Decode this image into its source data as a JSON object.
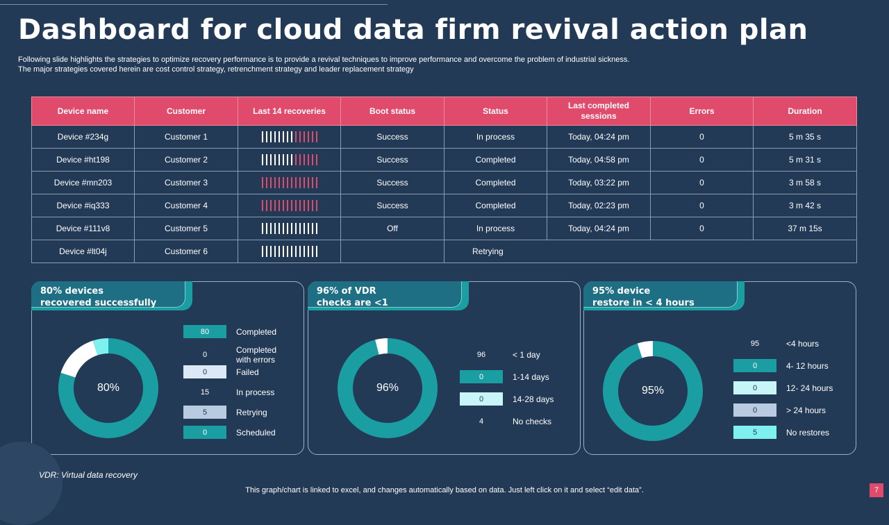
{
  "title": "Dashboard for cloud data firm revival action plan",
  "subtitle_lines": [
    "Following slide highlights the strategies to optimize recovery performance is to provide a revival techniques to improve performance and overcome the problem of industrial sickness.",
    "The major strategies covered herein are cost control strategy, retrenchment strategy and leader replacement strategy"
  ],
  "colors": {
    "accent": "#e04a6b",
    "teal": "#1a9ea1",
    "background": "#233a56"
  },
  "table": {
    "headers": [
      "Device name",
      "Customer",
      "Last 14 recoveries",
      "Boot status",
      "Status",
      "Last completed sessions",
      "Errors",
      "Duration"
    ],
    "rows": [
      {
        "device": "Device #234g",
        "customer": "Customer 1",
        "white_bars": 8,
        "red_bars": 6,
        "boot": "Success",
        "status": "In process",
        "last": "Today, 04:24 pm",
        "errors": "0",
        "duration": "5 m 35 s"
      },
      {
        "device": "Device #ht198",
        "customer": "Customer 2",
        "white_bars": 8,
        "red_bars": 6,
        "boot": "Success",
        "status": "Completed",
        "last": "Today, 04:58 pm",
        "errors": "0",
        "duration": "5 m 31 s"
      },
      {
        "device": "Device #mn203",
        "customer": "Customer 3",
        "white_bars": 0,
        "red_bars": 14,
        "boot": "Success",
        "status": "Completed",
        "last": "Today, 03:22 pm",
        "errors": "0",
        "duration": "3 m 58 s"
      },
      {
        "device": "Device #iq333",
        "customer": "Customer 4",
        "white_bars": 0,
        "red_bars": 14,
        "boot": "Success",
        "status": "Completed",
        "last": "Today, 02:23 pm",
        "errors": "0",
        "duration": "3 m 42 s"
      },
      {
        "device": "Device #111v8",
        "customer": "Customer 5",
        "white_bars": 14,
        "red_bars": 0,
        "boot": "Off",
        "status": "In process",
        "last": "Today, 04:24 pm",
        "errors": "0",
        "duration": "37 m 15s"
      },
      {
        "device": "Device #lt04j",
        "customer": "Customer 6",
        "white_bars": 14,
        "red_bars": 0,
        "retry_status": "Retrying"
      }
    ]
  },
  "panels": [
    {
      "heading_lines": [
        "80% devices",
        "recovered successfully"
      ],
      "center": "80%",
      "segments": [
        {
          "value": 80,
          "color": "#1a9ea1"
        },
        {
          "value": 15,
          "color": "#ffffff"
        },
        {
          "value": 5,
          "color": "#7ff0f0"
        }
      ],
      "legend": [
        {
          "value": "80",
          "label": "Completed",
          "color": "#1a9ea1",
          "text_color": "#ffffff"
        },
        {
          "value": "0",
          "label": "Completed\nwith errors",
          "color": "",
          "text_color": "#ffffff"
        },
        {
          "value": "0",
          "label": "Failed",
          "color": "#dce8f6",
          "text_color": "#233a56"
        },
        {
          "value": "15",
          "label": "In process",
          "color": "",
          "text_color": "#ffffff"
        },
        {
          "value": "5",
          "label": "Retrying",
          "color": "#b9cbe0",
          "text_color": "#233a56"
        },
        {
          "value": "0",
          "label": "Scheduled",
          "color": "#1a9ea1",
          "text_color": "#ffffff"
        }
      ]
    },
    {
      "heading_lines": [
        "96% of VDR",
        "checks are <1"
      ],
      "center": "96%",
      "segments": [
        {
          "value": 96,
          "color": "#1a9ea1"
        },
        {
          "value": 4,
          "color": "#ffffff"
        }
      ],
      "legend": [
        {
          "value": "96",
          "label": "< 1 day",
          "color": "",
          "text_color": "#ffffff"
        },
        {
          "value": "0",
          "label": "1-14 days",
          "color": "#1a9ea1",
          "text_color": "#ffffff"
        },
        {
          "value": "0",
          "label": "14-28 days",
          "color": "#c8f6f8",
          "text_color": "#233a56"
        },
        {
          "value": "4",
          "label": "No checks",
          "color": "",
          "text_color": "#ffffff"
        }
      ]
    },
    {
      "heading_lines": [
        "95% device",
        "restore in  < 4 hours"
      ],
      "center": "95%",
      "segments": [
        {
          "value": 95,
          "color": "#1a9ea1"
        },
        {
          "value": 5,
          "color": "#ffffff"
        }
      ],
      "legend": [
        {
          "value": "95",
          "label": "<4 hours",
          "color": "",
          "text_color": "#ffffff"
        },
        {
          "value": "0",
          "label": "4- 12 hours",
          "color": "#1a9ea1",
          "text_color": "#ffffff"
        },
        {
          "value": "0",
          "label": "12- 24 hours",
          "color": "#c8f6f8",
          "text_color": "#233a56"
        },
        {
          "value": "0",
          "label": "> 24 hours",
          "color": "#b9cbe0",
          "text_color": "#233a56"
        },
        {
          "value": "5",
          "label": "No restores",
          "color": "#7ff0f0",
          "text_color": "#233a56"
        }
      ]
    }
  ],
  "footnote": "VDR: Virtual data recovery",
  "footer": "This graph/chart is linked to excel,  and changes automatically based on data. Just left click on it and select “edit data”.",
  "page_number": "7"
}
